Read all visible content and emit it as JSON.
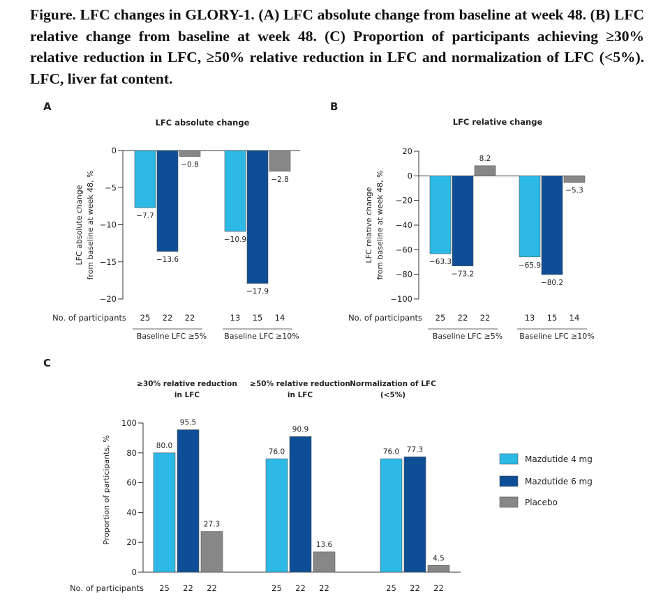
{
  "caption": "Figure. LFC changes in GLORY-1. (A) LFC absolute change from baseline at week 48. (B) LFC relative change from baseline at week 48. (C) Proportion of participants achieving ≥30% relative reduction in LFC, ≥50% relative reduction in LFC and normalization of LFC (<5%). LFC, liver fat content.",
  "colors": {
    "mazdutide_4mg": "#2cb9e6",
    "mazdutide_6mg": "#0d4e96",
    "placebo": "#878787"
  },
  "legend": {
    "items": [
      "Mazdutide 4 mg",
      "Mazdutide 6 mg",
      "Placebo"
    ]
  },
  "chart_data": [
    {
      "panel": "A",
      "type": "bar",
      "title": "LFC absolute change",
      "ylabel": [
        "LFC absolute change",
        "from baseline at week 48, %"
      ],
      "ylim": [
        -20,
        0
      ],
      "yticks": [
        0,
        -5,
        -10,
        -15,
        -20
      ],
      "participants_label": "No. of participants",
      "groups": [
        {
          "label": "Baseline LFC ≥5%",
          "n": [
            "25",
            "22",
            "22"
          ],
          "values": [
            -7.7,
            -13.6,
            -0.8
          ],
          "labels": [
            "−7.7",
            "−13.6",
            "−0.8"
          ]
        },
        {
          "label": "Baseline LFC ≥10%",
          "n": [
            "13",
            "15",
            "14"
          ],
          "values": [
            -10.9,
            -17.9,
            -2.8
          ],
          "labels": [
            "−10.9",
            "−17.9",
            "−2.8"
          ]
        }
      ],
      "series": [
        "Mazdutide 4 mg",
        "Mazdutide 6 mg",
        "Placebo"
      ]
    },
    {
      "panel": "B",
      "type": "bar",
      "title": "LFC relative change",
      "ylabel": [
        "LFC relative change",
        "from baseline at week 48, %"
      ],
      "ylim": [
        -100,
        20
      ],
      "yticks": [
        20,
        0,
        -20,
        -40,
        -60,
        -80,
        -100
      ],
      "participants_label": "No. of participants",
      "groups": [
        {
          "label": "Baseline LFC ≥5%",
          "n": [
            "25",
            "22",
            "22"
          ],
          "values": [
            -63.3,
            -73.2,
            8.2
          ],
          "labels": [
            "−63.3",
            "−73.2",
            "8.2"
          ]
        },
        {
          "label": "Baseline LFC ≥10%",
          "n": [
            "13",
            "15",
            "14"
          ],
          "values": [
            -65.9,
            -80.2,
            -5.3
          ],
          "labels": [
            "−65.9",
            "−80.2",
            "−5.3"
          ]
        }
      ],
      "series": [
        "Mazdutide 4 mg",
        "Mazdutide 6 mg",
        "Placebo"
      ]
    },
    {
      "panel": "C",
      "type": "bar",
      "title": "",
      "ylabel": [
        "Proportion of participants, %"
      ],
      "ylim": [
        0,
        100
      ],
      "yticks": [
        100,
        80,
        60,
        40,
        20,
        0
      ],
      "participants_label": "No. of participants",
      "groups": [
        {
          "label": "≥30% relative reduction in LFC",
          "title_lines": [
            "≥30% relative reduction",
            "in LFC"
          ],
          "n": [
            "25",
            "22",
            "22"
          ],
          "values": [
            80.0,
            95.5,
            27.3
          ],
          "labels": [
            "80.0",
            "95.5",
            "27.3"
          ]
        },
        {
          "label": "≥50% relative reduction in LFC",
          "title_lines": [
            "≥50% relative reduction",
            "in LFC"
          ],
          "n": [
            "25",
            "22",
            "22"
          ],
          "values": [
            76.0,
            90.9,
            13.6
          ],
          "labels": [
            "76.0",
            "90.9",
            "13.6"
          ]
        },
        {
          "label": "Normalization of LFC (<5%)",
          "title_lines": [
            "Normalization of LFC",
            "(<5%)"
          ],
          "n": [
            "25",
            "22",
            "22"
          ],
          "values": [
            76.0,
            77.3,
            4.5
          ],
          "labels": [
            "76.0",
            "77.3",
            "4.5"
          ]
        }
      ],
      "series": [
        "Mazdutide 4 mg",
        "Mazdutide 6 mg",
        "Placebo"
      ]
    }
  ]
}
